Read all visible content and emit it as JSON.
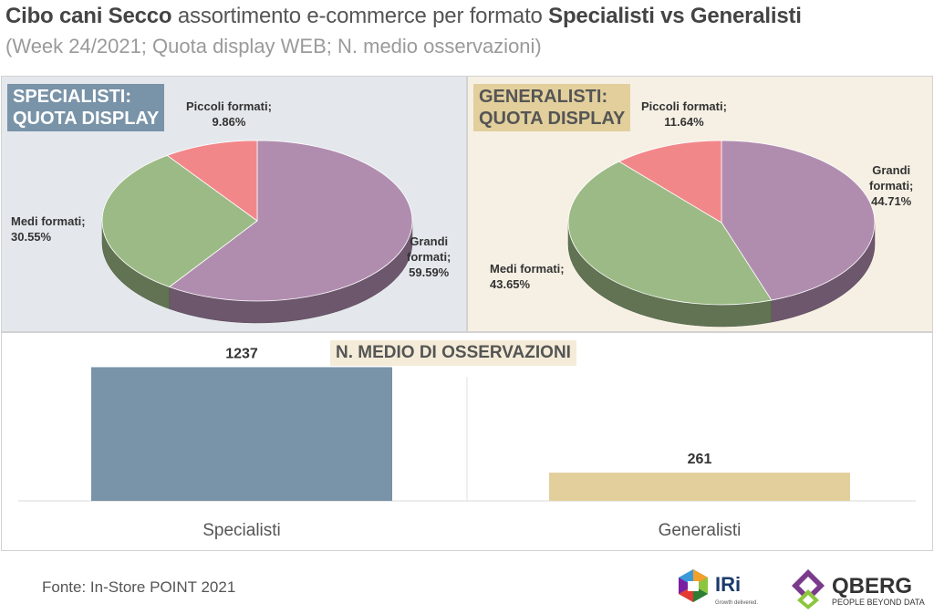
{
  "header": {
    "title_part1": "Cibo cani Secco",
    "title_part2": " assortimento e-commerce per formato ",
    "title_part3": "Specialisti vs Generalisti",
    "subtitle": "(Week 24/2021; Quota display WEB; N. medio osservazioni)"
  },
  "chart_data": [
    {
      "type": "pie",
      "title": "SPECIALISTI: QUOTA DISPLAY",
      "title_line1": "SPECIALISTI:",
      "title_line2": "QUOTA DISPLAY",
      "slices": [
        {
          "name": "Grandi formati",
          "line1": "Grandi",
          "line2": "formati;",
          "pct_label": "59.59%",
          "value": 59.59,
          "color": "#b08daf"
        },
        {
          "name": "Medi formati",
          "line1": "Medi formati;",
          "pct_label": "30.55%",
          "value": 30.55,
          "color": "#9cba86"
        },
        {
          "name": "Piccoli formati",
          "line1": "Piccoli formati;",
          "pct_label": "9.86%",
          "value": 9.86,
          "color": "#f2878a"
        }
      ]
    },
    {
      "type": "pie",
      "title": "GENERALISTI: QUOTA DISPLAY",
      "title_line1": "GENERALISTI:",
      "title_line2": "QUOTA DISPLAY",
      "slices": [
        {
          "name": "Grandi formati",
          "line1": "Grandi",
          "line2": "formati;",
          "pct_label": "44.71%",
          "value": 44.71,
          "color": "#b08daf"
        },
        {
          "name": "Medi formati",
          "line1": "Medi formati;",
          "pct_label": "43.65%",
          "value": 43.65,
          "color": "#9cba86"
        },
        {
          "name": "Piccoli formati",
          "line1": "Piccoli formati;",
          "pct_label": "11.64%",
          "value": 11.64,
          "color": "#f2878a"
        }
      ]
    },
    {
      "type": "bar",
      "title": "N. MEDIO DI OSSERVAZIONI",
      "categories": [
        "Specialisti",
        "Generalisti"
      ],
      "values": [
        1237,
        261
      ],
      "value_labels": [
        "1237",
        "261"
      ],
      "colors": [
        "#7993a8",
        "#e2cf9c"
      ],
      "ylim": [
        0,
        1300
      ]
    }
  ],
  "footer": {
    "source": "Fonte: In-Store POINT 2021"
  },
  "logos": {
    "iri_text": "IRi",
    "iri_tagline": "Growth delivered.",
    "qberg_text": "QBERG",
    "qberg_tagline": "PEOPLE BEYOND DATA"
  }
}
